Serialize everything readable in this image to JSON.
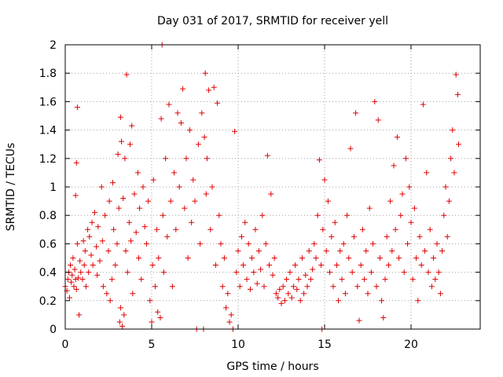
{
  "chart_data": {
    "type": "scatter",
    "title": "Day 031 of 2017, SRMTID for receiver yell",
    "xlabel": "GPS time / hours",
    "ylabel": "SRMTID / TECUs",
    "xlim": [
      0,
      24
    ],
    "ylim": [
      0,
      2
    ],
    "x_ticks": [
      0,
      5,
      10,
      15,
      20
    ],
    "x_tick_labels": [
      "0",
      "5",
      "10",
      "15",
      "20"
    ],
    "y_ticks": [
      0,
      0.2,
      0.4,
      0.6,
      0.8,
      1,
      1.2,
      1.4,
      1.6,
      1.8,
      2
    ],
    "y_tick_labels": [
      "0",
      "0.2",
      "0.4",
      "0.6",
      "0.8",
      "1",
      "1.2",
      "1.4",
      "1.6",
      "1.8",
      "2"
    ],
    "grid": true,
    "marker": "+",
    "color": "#e00000",
    "series": [
      {
        "name": "SRMTID",
        "points": [
          [
            0.0,
            0.3
          ],
          [
            0.1,
            0.27
          ],
          [
            0.15,
            0.35
          ],
          [
            0.2,
            0.4
          ],
          [
            0.25,
            0.22
          ],
          [
            0.3,
            0.45
          ],
          [
            0.35,
            0.33
          ],
          [
            0.4,
            0.38
          ],
          [
            0.45,
            0.5
          ],
          [
            0.5,
            0.3
          ],
          [
            0.55,
            0.42
          ],
          [
            0.6,
            0.94
          ],
          [
            0.6,
            0.35
          ],
          [
            0.65,
            1.17
          ],
          [
            0.65,
            0.28
          ],
          [
            0.7,
            1.56
          ],
          [
            0.7,
            0.6
          ],
          [
            0.75,
            0.36
          ],
          [
            0.8,
            0.1
          ],
          [
            0.85,
            0.48
          ],
          [
            0.9,
            0.4
          ],
          [
            1.0,
            0.35
          ],
          [
            1.05,
            0.62
          ],
          [
            1.1,
            0.45
          ],
          [
            1.15,
            0.55
          ],
          [
            1.2,
            0.3
          ],
          [
            1.3,
            0.7
          ],
          [
            1.35,
            0.4
          ],
          [
            1.4,
            0.65
          ],
          [
            1.5,
            0.52
          ],
          [
            1.55,
            0.75
          ],
          [
            1.6,
            0.45
          ],
          [
            1.7,
            0.82
          ],
          [
            1.8,
            0.58
          ],
          [
            1.85,
            0.38
          ],
          [
            1.9,
            0.72
          ],
          [
            2.0,
            0.48
          ],
          [
            2.1,
            1.0
          ],
          [
            2.15,
            0.62
          ],
          [
            2.2,
            0.3
          ],
          [
            2.3,
            0.8
          ],
          [
            2.4,
            0.25
          ],
          [
            2.5,
            0.55
          ],
          [
            2.55,
            0.9
          ],
          [
            2.6,
            0.2
          ],
          [
            2.7,
            0.35
          ],
          [
            2.75,
            1.03
          ],
          [
            2.8,
            0.7
          ],
          [
            2.9,
            0.45
          ],
          [
            3.0,
            0.6
          ],
          [
            3.05,
            1.23
          ],
          [
            3.1,
            0.85
          ],
          [
            3.15,
            0.05
          ],
          [
            3.2,
            1.49
          ],
          [
            3.2,
            0.15
          ],
          [
            3.25,
            1.32
          ],
          [
            3.3,
            0.02
          ],
          [
            3.35,
            0.92
          ],
          [
            3.4,
            0.1
          ],
          [
            3.45,
            1.2
          ],
          [
            3.5,
            0.55
          ],
          [
            3.55,
            1.79
          ],
          [
            3.6,
            0.4
          ],
          [
            3.7,
            0.75
          ],
          [
            3.75,
            1.3
          ],
          [
            3.8,
            0.62
          ],
          [
            3.85,
            1.43
          ],
          [
            3.9,
            0.25
          ],
          [
            4.0,
            0.95
          ],
          [
            4.1,
            0.68
          ],
          [
            4.2,
            1.1
          ],
          [
            4.25,
            0.5
          ],
          [
            4.3,
            0.85
          ],
          [
            4.4,
            0.35
          ],
          [
            4.5,
            1.0
          ],
          [
            4.6,
            0.72
          ],
          [
            4.7,
            0.6
          ],
          [
            4.8,
            0.9
          ],
          [
            4.9,
            0.2
          ],
          [
            5.0,
            0.05
          ],
          [
            5.05,
            0.45
          ],
          [
            5.1,
            1.05
          ],
          [
            5.2,
            0.3
          ],
          [
            5.3,
            0.7
          ],
          [
            5.35,
            0.12
          ],
          [
            5.4,
            0.5
          ],
          [
            5.5,
            0.08
          ],
          [
            5.55,
            1.48
          ],
          [
            5.6,
            2.0
          ],
          [
            5.65,
            0.8
          ],
          [
            5.7,
            0.4
          ],
          [
            5.8,
            1.2
          ],
          [
            5.9,
            0.65
          ],
          [
            6.0,
            1.58
          ],
          [
            6.1,
            0.9
          ],
          [
            6.2,
            0.3
          ],
          [
            6.3,
            1.1
          ],
          [
            6.4,
            0.7
          ],
          [
            6.5,
            1.52
          ],
          [
            6.6,
            1.0
          ],
          [
            6.7,
            1.45
          ],
          [
            6.8,
            1.69
          ],
          [
            6.9,
            0.85
          ],
          [
            7.0,
            1.2
          ],
          [
            7.1,
            0.5
          ],
          [
            7.2,
            1.4
          ],
          [
            7.3,
            0.75
          ],
          [
            7.4,
            1.05
          ],
          [
            7.5,
            0.9
          ],
          [
            7.6,
            0.0
          ],
          [
            7.7,
            1.3
          ],
          [
            7.8,
            0.6
          ],
          [
            7.9,
            1.52
          ],
          [
            8.0,
            0.0
          ],
          [
            8.05,
            1.35
          ],
          [
            8.1,
            1.8
          ],
          [
            8.15,
            0.95
          ],
          [
            8.2,
            1.2
          ],
          [
            8.3,
            1.68
          ],
          [
            8.4,
            0.7
          ],
          [
            8.5,
            1.0
          ],
          [
            8.6,
            1.7
          ],
          [
            8.7,
            0.45
          ],
          [
            8.8,
            1.59
          ],
          [
            8.9,
            0.8
          ],
          [
            9.0,
            0.6
          ],
          [
            9.1,
            0.3
          ],
          [
            9.2,
            0.5
          ],
          [
            9.3,
            0.15
          ],
          [
            9.4,
            0.25
          ],
          [
            9.5,
            0.05
          ],
          [
            9.6,
            0.1
          ],
          [
            9.7,
            0.0
          ],
          [
            9.8,
            1.39
          ],
          [
            9.9,
            0.4
          ],
          [
            10.0,
            0.55
          ],
          [
            10.1,
            0.3
          ],
          [
            10.2,
            0.65
          ],
          [
            10.3,
            0.45
          ],
          [
            10.4,
            0.75
          ],
          [
            10.5,
            0.35
          ],
          [
            10.6,
            0.6
          ],
          [
            10.7,
            0.28
          ],
          [
            10.8,
            0.5
          ],
          [
            10.9,
            0.4
          ],
          [
            11.0,
            0.7
          ],
          [
            11.1,
            0.32
          ],
          [
            11.2,
            0.55
          ],
          [
            11.3,
            0.42
          ],
          [
            11.4,
            0.8
          ],
          [
            11.5,
            0.3
          ],
          [
            11.6,
            0.6
          ],
          [
            11.7,
            1.22
          ],
          [
            11.8,
            0.45
          ],
          [
            11.9,
            0.95
          ],
          [
            12.0,
            0.38
          ],
          [
            12.1,
            0.5
          ],
          [
            12.2,
            0.25
          ],
          [
            12.3,
            0.22
          ],
          [
            12.4,
            0.28
          ],
          [
            12.5,
            0.18
          ],
          [
            12.6,
            0.3
          ],
          [
            12.7,
            0.2
          ],
          [
            12.8,
            0.35
          ],
          [
            12.9,
            0.25
          ],
          [
            13.0,
            0.4
          ],
          [
            13.1,
            0.22
          ],
          [
            13.2,
            0.3
          ],
          [
            13.3,
            0.45
          ],
          [
            13.4,
            0.28
          ],
          [
            13.5,
            0.35
          ],
          [
            13.6,
            0.2
          ],
          [
            13.7,
            0.5
          ],
          [
            13.8,
            0.25
          ],
          [
            13.9,
            0.38
          ],
          [
            14.0,
            0.3
          ],
          [
            14.1,
            0.55
          ],
          [
            14.2,
            0.35
          ],
          [
            14.3,
            0.42
          ],
          [
            14.4,
            0.6
          ],
          [
            14.5,
            0.5
          ],
          [
            14.6,
            0.8
          ],
          [
            14.7,
            1.19
          ],
          [
            14.8,
            0.45
          ],
          [
            14.85,
            0.0
          ],
          [
            14.9,
            0.7
          ],
          [
            15.0,
            1.05
          ],
          [
            15.1,
            0.55
          ],
          [
            15.2,
            0.9
          ],
          [
            15.3,
            0.4
          ],
          [
            15.4,
            0.65
          ],
          [
            15.5,
            0.3
          ],
          [
            15.6,
            0.75
          ],
          [
            15.7,
            0.45
          ],
          [
            15.8,
            0.2
          ],
          [
            15.9,
            0.55
          ],
          [
            16.0,
            0.35
          ],
          [
            16.1,
            0.6
          ],
          [
            16.2,
            0.25
          ],
          [
            16.3,
            0.8
          ],
          [
            16.4,
            0.5
          ],
          [
            16.5,
            1.27
          ],
          [
            16.6,
            0.4
          ],
          [
            16.7,
            0.65
          ],
          [
            16.8,
            1.52
          ],
          [
            16.9,
            0.3
          ],
          [
            17.0,
            0.06
          ],
          [
            17.1,
            0.45
          ],
          [
            17.2,
            0.7
          ],
          [
            17.3,
            0.35
          ],
          [
            17.4,
            0.55
          ],
          [
            17.5,
            0.25
          ],
          [
            17.6,
            0.85
          ],
          [
            17.7,
            0.4
          ],
          [
            17.8,
            0.6
          ],
          [
            17.9,
            1.6
          ],
          [
            18.0,
            0.3
          ],
          [
            18.1,
            1.47
          ],
          [
            18.2,
            0.5
          ],
          [
            18.3,
            0.2
          ],
          [
            18.4,
            0.08
          ],
          [
            18.5,
            0.35
          ],
          [
            18.6,
            0.65
          ],
          [
            18.7,
            0.45
          ],
          [
            18.8,
            0.9
          ],
          [
            18.9,
            0.55
          ],
          [
            19.0,
            1.15
          ],
          [
            19.1,
            0.7
          ],
          [
            19.2,
            1.35
          ],
          [
            19.3,
            0.5
          ],
          [
            19.4,
            0.8
          ],
          [
            19.5,
            0.95
          ],
          [
            19.6,
            0.4
          ],
          [
            19.7,
            1.2
          ],
          [
            19.8,
            0.6
          ],
          [
            19.9,
            1.0
          ],
          [
            20.0,
            0.75
          ],
          [
            20.1,
            0.35
          ],
          [
            20.2,
            0.85
          ],
          [
            20.3,
            0.5
          ],
          [
            20.4,
            0.2
          ],
          [
            20.5,
            0.65
          ],
          [
            20.6,
            0.45
          ],
          [
            20.7,
            1.58
          ],
          [
            20.8,
            0.55
          ],
          [
            20.9,
            1.1
          ],
          [
            21.0,
            0.4
          ],
          [
            21.1,
            0.7
          ],
          [
            21.2,
            0.3
          ],
          [
            21.3,
            0.5
          ],
          [
            21.4,
            0.35
          ],
          [
            21.5,
            0.6
          ],
          [
            21.6,
            0.4
          ],
          [
            21.7,
            0.25
          ],
          [
            21.8,
            0.55
          ],
          [
            21.9,
            0.8
          ],
          [
            22.0,
            1.0
          ],
          [
            22.1,
            0.65
          ],
          [
            22.2,
            0.9
          ],
          [
            22.3,
            1.2
          ],
          [
            22.4,
            1.4
          ],
          [
            22.5,
            1.1
          ],
          [
            22.6,
            1.79
          ],
          [
            22.7,
            1.65
          ],
          [
            22.75,
            1.3
          ]
        ]
      }
    ]
  }
}
